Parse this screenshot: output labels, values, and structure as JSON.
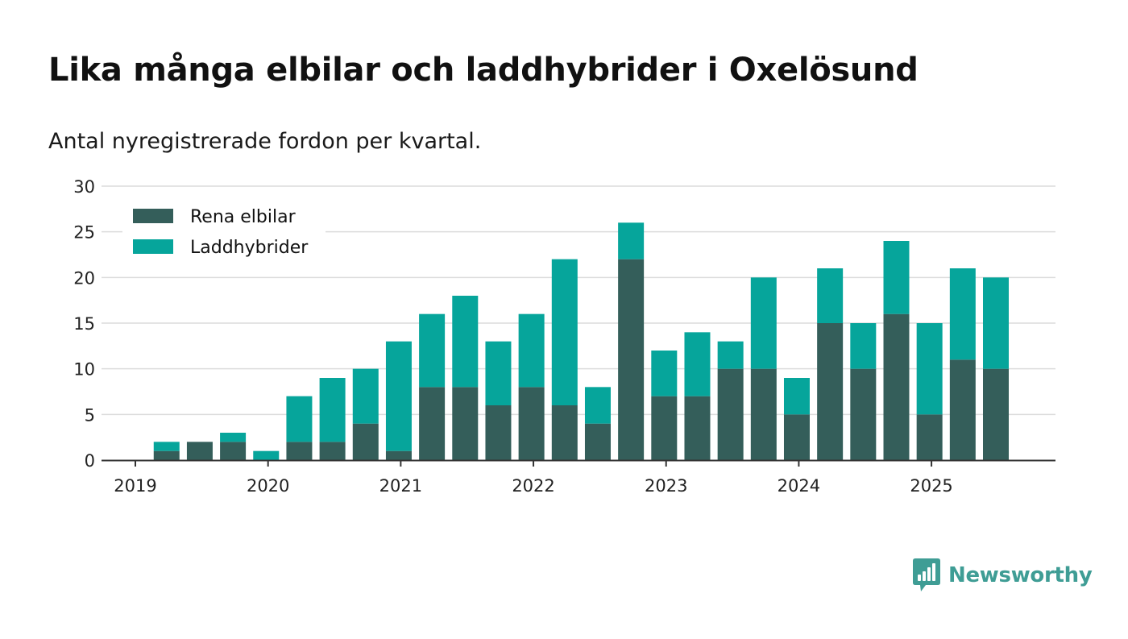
{
  "chart_data": {
    "type": "bar",
    "stacked": true,
    "title": "Lika många elbilar och laddhybrider i Oxelösund",
    "subtitle": "Antal nyregistrerade fordon per kvartal.",
    "xlabel": "",
    "ylabel": "",
    "ylim": [
      0,
      30
    ],
    "yticks": [
      0,
      5,
      10,
      15,
      20,
      25,
      30
    ],
    "x_tick_labels": [
      "2019",
      "2020",
      "2021",
      "2022",
      "2023",
      "2024",
      "2025"
    ],
    "grid": true,
    "legend_position": "top-left",
    "categories": [
      "2019 Q1",
      "2019 Q2",
      "2019 Q3",
      "2019 Q4",
      "2020 Q1",
      "2020 Q2",
      "2020 Q3",
      "2020 Q4",
      "2021 Q1",
      "2021 Q2",
      "2021 Q3",
      "2021 Q4",
      "2022 Q1",
      "2022 Q2",
      "2022 Q3",
      "2022 Q4",
      "2023 Q1",
      "2023 Q2",
      "2023 Q3",
      "2023 Q4",
      "2024 Q1",
      "2024 Q2",
      "2024 Q3",
      "2024 Q4",
      "2025 Q1",
      "2025 Q2",
      "2025 Q3"
    ],
    "series": [
      {
        "name": "Rena elbilar",
        "color": "#345e5a",
        "values": [
          0,
          1,
          2,
          2,
          0,
          2,
          2,
          4,
          1,
          8,
          8,
          6,
          8,
          6,
          4,
          22,
          7,
          7,
          10,
          10,
          5,
          15,
          10,
          16,
          5,
          11,
          10
        ]
      },
      {
        "name": "Laddhybrider",
        "color": "#06a59b",
        "values": [
          0,
          1,
          0,
          1,
          1,
          5,
          7,
          6,
          12,
          8,
          10,
          7,
          8,
          16,
          4,
          4,
          5,
          7,
          3,
          10,
          4,
          6,
          5,
          8,
          10,
          10,
          10
        ]
      }
    ]
  },
  "brand": {
    "name": "Newsworthy",
    "logo_icon": "newsworthy-logo-icon",
    "color": "#3f9d95"
  }
}
